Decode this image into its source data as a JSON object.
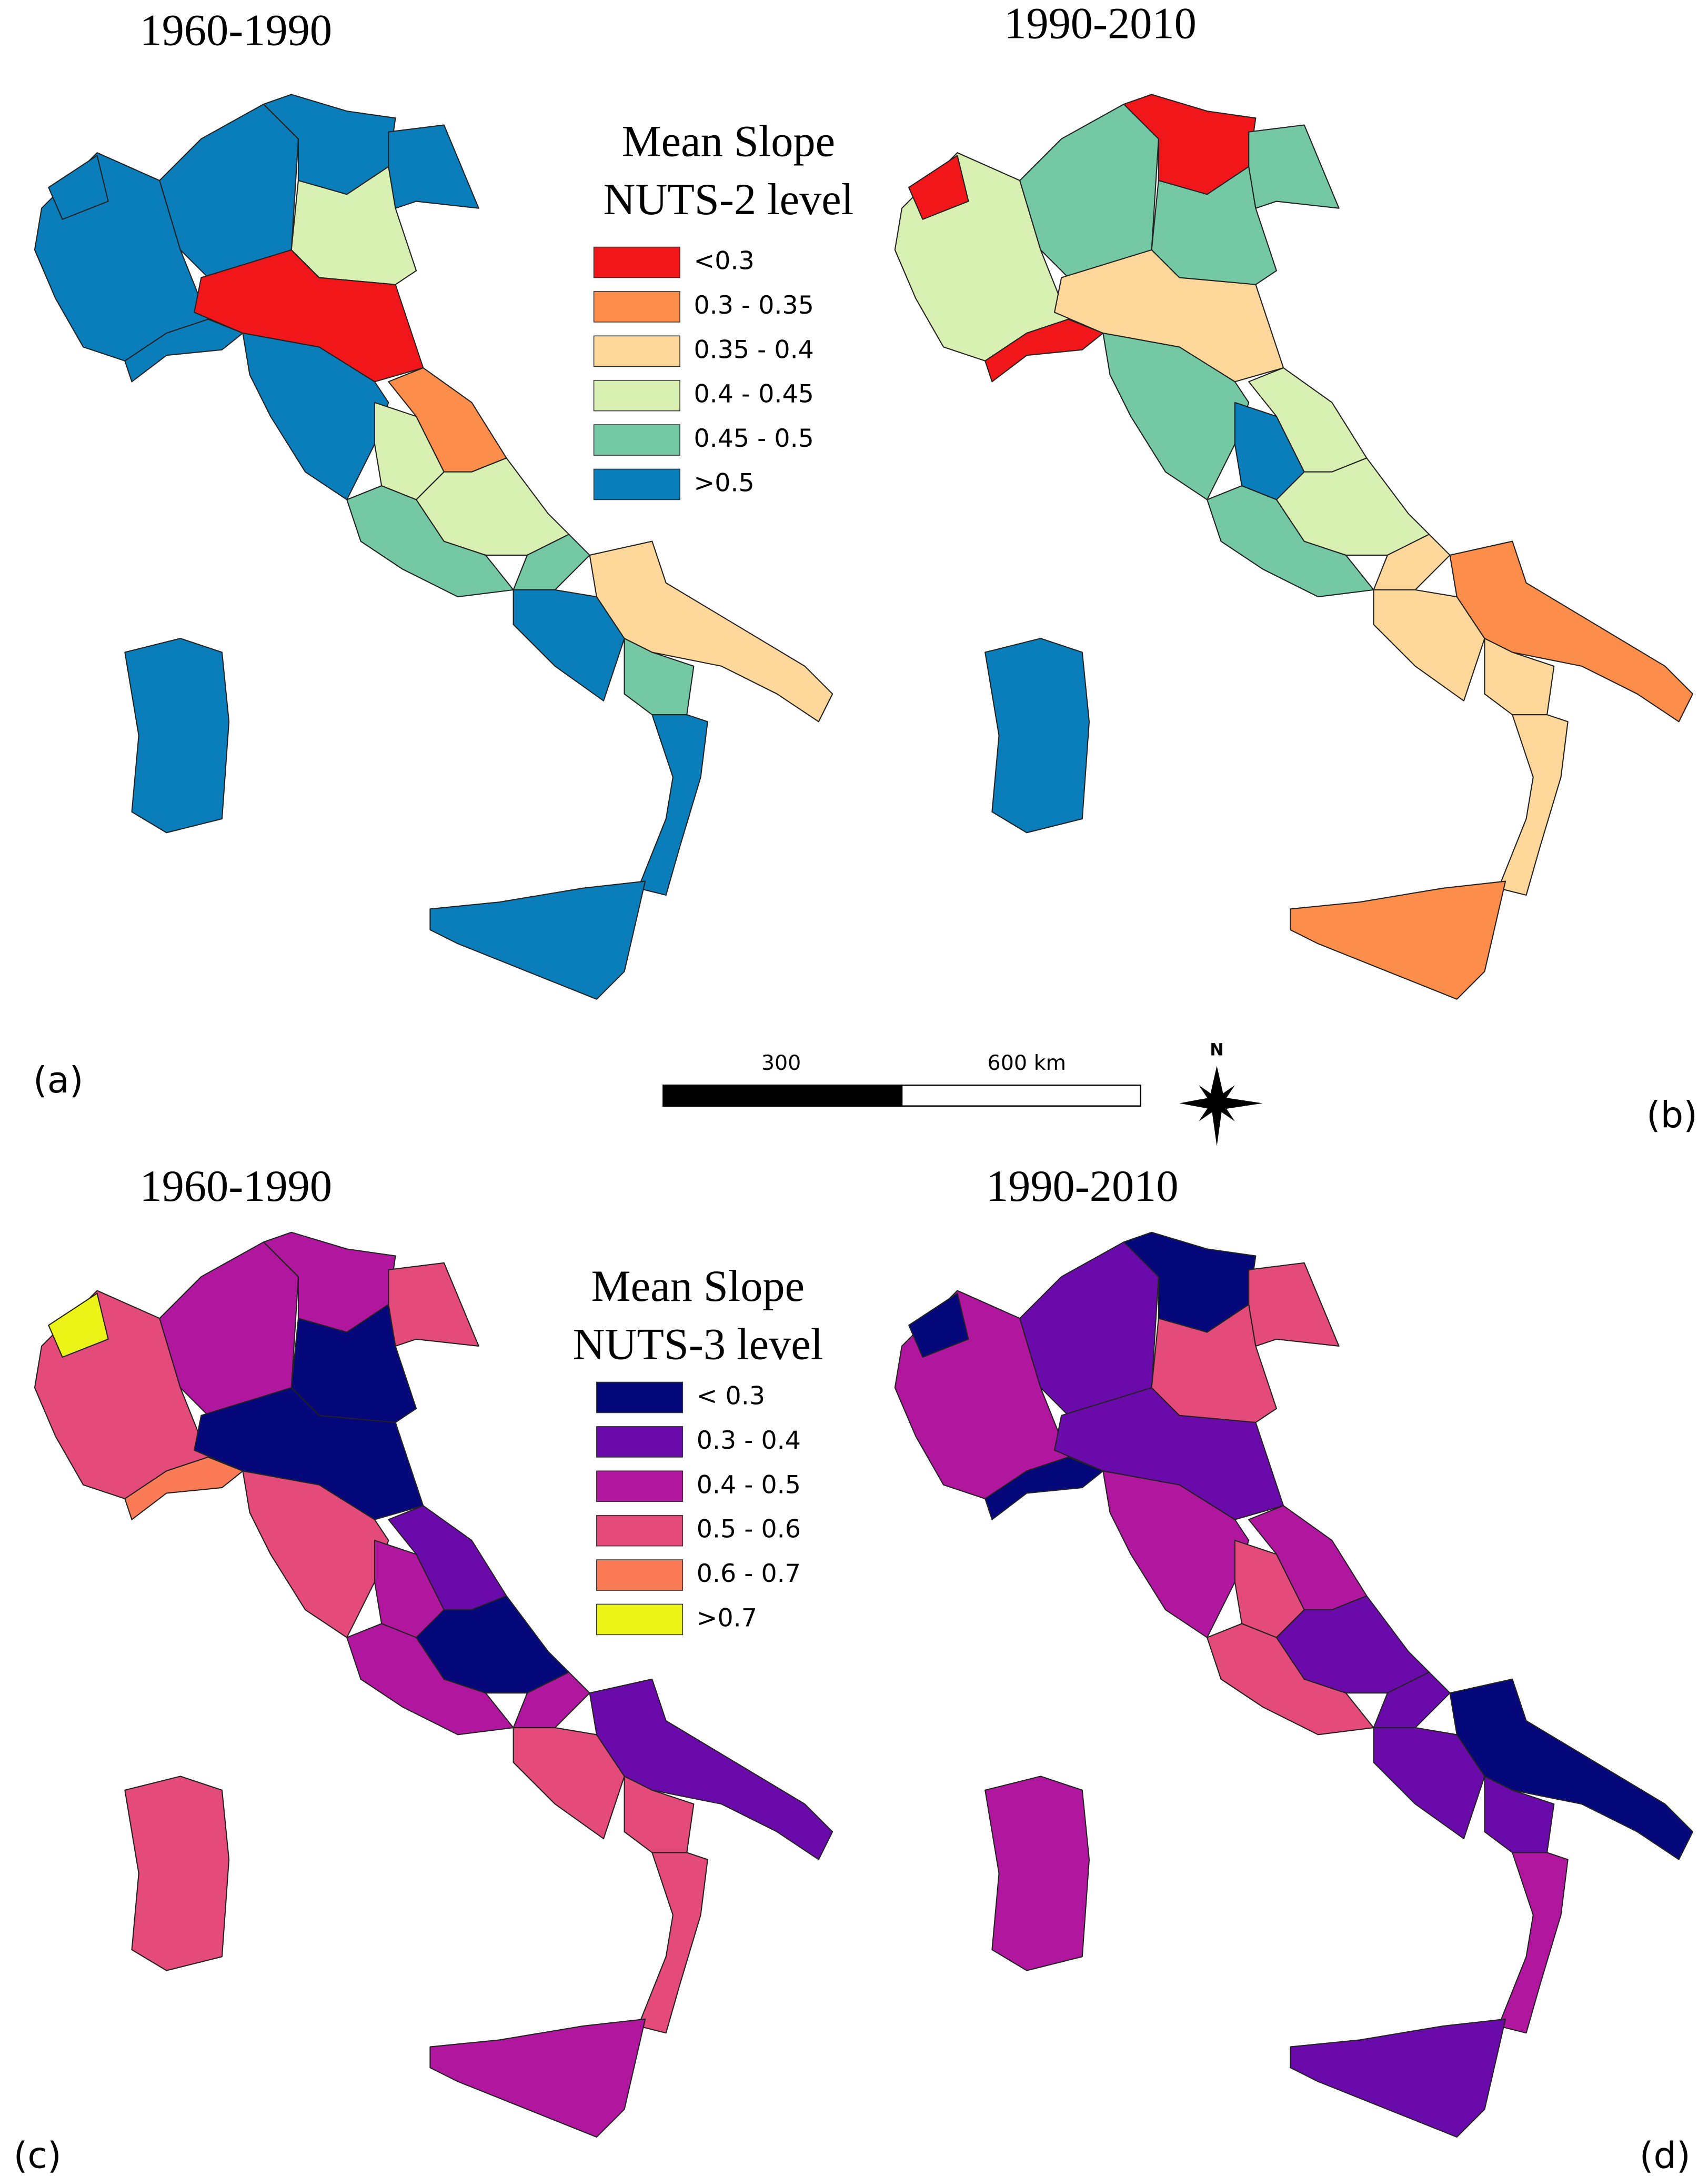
{
  "panels": [
    {
      "label": "(a)",
      "title": "1960-1990"
    },
    {
      "label": "(b)",
      "title": "1990-2010"
    },
    {
      "label": "(c)",
      "title": "1960-1990"
    },
    {
      "label": "(d)",
      "title": "1990-2010"
    }
  ],
  "legends": [
    {
      "title": [
        "Mean Slope",
        "NUTS-2 level"
      ],
      "items": [
        {
          "label": "<0.3",
          "color": "#f0161a"
        },
        {
          "label": "0.3 - 0.35",
          "color": "#fd8d4b"
        },
        {
          "label": "0.35 - 0.4",
          "color": "#fdd89a"
        },
        {
          "label": "0.4 - 0.45",
          "color": "#d9f0b3"
        },
        {
          "label": "0.45 - 0.5",
          "color": "#74c8a4"
        },
        {
          "label": ">0.5",
          "color": "#0a7ebb"
        }
      ]
    },
    {
      "title": [
        "Mean Slope",
        "NUTS-3 level"
      ],
      "items": [
        {
          "label": "< 0.3",
          "color": "#05087a"
        },
        {
          "label": "0.3 - 0.4",
          "color": "#6a0aab"
        },
        {
          "label": "0.4 - 0.5",
          "color": "#b1169e"
        },
        {
          "label": "0.5 - 0.6",
          "color": "#e44a7a"
        },
        {
          "label": "0.6 - 0.7",
          "color": "#fb7b57"
        },
        {
          "label": ">0.7",
          "color": "#ecf417"
        }
      ]
    }
  ],
  "scale_bar": {
    "labels": [
      "300",
      "600 km"
    ]
  },
  "north": "N"
}
